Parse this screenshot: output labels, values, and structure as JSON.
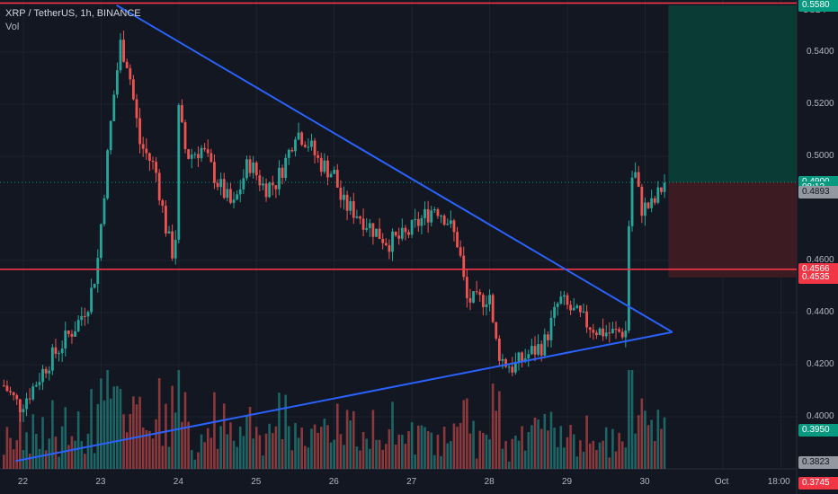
{
  "header": {
    "symbol_line": "XRP / TetherUS, 1h, BINANCE",
    "indicator": "Vol"
  },
  "axis": {
    "currency": "USDT",
    "y_ticks": [
      {
        "value": 0.54,
        "label": "0.5400"
      },
      {
        "value": 0.52,
        "label": "0.5200"
      },
      {
        "value": 0.5,
        "label": "0.5000"
      },
      {
        "value": 0.46,
        "label": "0.4600"
      },
      {
        "value": 0.44,
        "label": "0.4400"
      },
      {
        "value": 0.42,
        "label": "0.4200"
      },
      {
        "value": 0.4,
        "label": "0.4000"
      }
    ],
    "x_ticks": [
      {
        "label": "22",
        "day": 22.0
      },
      {
        "label": "23",
        "day": 23.0
      },
      {
        "label": "24",
        "day": 24.0
      },
      {
        "label": "25",
        "day": 25.0
      },
      {
        "label": "26",
        "day": 26.0
      },
      {
        "label": "27",
        "day": 27.0
      },
      {
        "label": "28",
        "day": 28.0
      },
      {
        "label": "29",
        "day": 29.0
      },
      {
        "label": "30",
        "day": 30.0
      },
      {
        "label": "Oct",
        "day": 31.0
      },
      {
        "label": "18:00",
        "day": 31.75
      }
    ]
  },
  "price_tags": [
    {
      "label": "0.5588",
      "value": 0.5588,
      "bg": "#f23645",
      "fg": "#ffffff"
    },
    {
      "label": "0.5580",
      "value": 0.558,
      "bg": "#089981",
      "fg": "#ffffff"
    },
    {
      "label": "0.4900",
      "value": 0.49,
      "bg": "#089981",
      "fg": "#ffffff"
    },
    {
      "label": "08:12",
      "value": 0.488,
      "bg": "#089981",
      "fg": "#ffffff"
    },
    {
      "label": "0.4893",
      "value": 0.4862,
      "bg": "#9598a1",
      "fg": "#131722"
    },
    {
      "label": "0.4566",
      "value": 0.4566,
      "bg": "#f23645",
      "fg": "#ffffff"
    },
    {
      "label": "0.4535",
      "value": 0.4535,
      "bg": "#f23645",
      "fg": "#ffffff"
    },
    {
      "label": "0.3950",
      "value": 0.395,
      "bg": "#089981",
      "fg": "#ffffff"
    },
    {
      "label": "0.3823",
      "value": 0.3823,
      "bg": "#9598a1",
      "fg": "#131722"
    },
    {
      "label": "0.3745",
      "value": 0.3745,
      "bg": "#f23645",
      "fg": "#ffffff"
    }
  ],
  "colors": {
    "up": "#26a69a",
    "down": "#ef5350",
    "trendline": "#2962ff",
    "horizontal": "#f23645",
    "target_zone": "#0b3b35",
    "stop_zone": "#3d1b22"
  },
  "chart_data": {
    "type": "candlestick",
    "symbol": "XRP / TetherUS",
    "interval": "1h",
    "exchange": "BINANCE",
    "ylim": [
      0.38,
      0.56
    ],
    "xlim": [
      21.7,
      31.95
    ],
    "close_path": [
      [
        21.75,
        0.412
      ],
      [
        21.95,
        0.404
      ],
      [
        22.1,
        0.41
      ],
      [
        22.3,
        0.42
      ],
      [
        22.5,
        0.428
      ],
      [
        22.7,
        0.436
      ],
      [
        22.85,
        0.445
      ],
      [
        22.95,
        0.458
      ],
      [
        23.05,
        0.49
      ],
      [
        23.15,
        0.52
      ],
      [
        23.25,
        0.543
      ],
      [
        23.35,
        0.535
      ],
      [
        23.5,
        0.505
      ],
      [
        23.7,
        0.495
      ],
      [
        23.85,
        0.47
      ],
      [
        23.95,
        0.46
      ],
      [
        24.0,
        0.517
      ],
      [
        24.1,
        0.5
      ],
      [
        24.3,
        0.503
      ],
      [
        24.5,
        0.49
      ],
      [
        24.7,
        0.48
      ],
      [
        24.9,
        0.498
      ],
      [
        25.1,
        0.488
      ],
      [
        25.25,
        0.49
      ],
      [
        25.4,
        0.5
      ],
      [
        25.5,
        0.51
      ],
      [
        25.65,
        0.506
      ],
      [
        25.8,
        0.498
      ],
      [
        26.0,
        0.493
      ],
      [
        26.1,
        0.482
      ],
      [
        26.3,
        0.478
      ],
      [
        26.5,
        0.472
      ],
      [
        26.7,
        0.467
      ],
      [
        26.9,
        0.469
      ],
      [
        27.1,
        0.475
      ],
      [
        27.3,
        0.481
      ],
      [
        27.45,
        0.476
      ],
      [
        27.6,
        0.466
      ],
      [
        27.7,
        0.445
      ],
      [
        27.85,
        0.444
      ],
      [
        28.0,
        0.447
      ],
      [
        28.05,
        0.432
      ],
      [
        28.15,
        0.422
      ],
      [
        28.3,
        0.419
      ],
      [
        28.5,
        0.424
      ],
      [
        28.7,
        0.428
      ],
      [
        28.9,
        0.445
      ],
      [
        29.0,
        0.442
      ],
      [
        29.2,
        0.437
      ],
      [
        29.4,
        0.433
      ],
      [
        29.6,
        0.432
      ],
      [
        29.75,
        0.433
      ],
      [
        29.8,
        0.482
      ],
      [
        29.85,
        0.497
      ],
      [
        29.95,
        0.48
      ],
      [
        30.1,
        0.481
      ],
      [
        30.25,
        0.49
      ]
    ],
    "volume_ylim": [
      0,
      1
    ],
    "horizontal_lines": [
      0.5588,
      0.4566
    ],
    "trendlines": [
      {
        "from": [
          23.2,
          0.558
        ],
        "to": [
          30.35,
          0.4325
        ]
      },
      {
        "from": [
          21.9,
          0.383
        ],
        "to": [
          30.35,
          0.4325
        ]
      }
    ],
    "position": {
      "entry": 0.49,
      "target": 0.558,
      "stop": 0.4535,
      "start_day": 30.3
    }
  }
}
